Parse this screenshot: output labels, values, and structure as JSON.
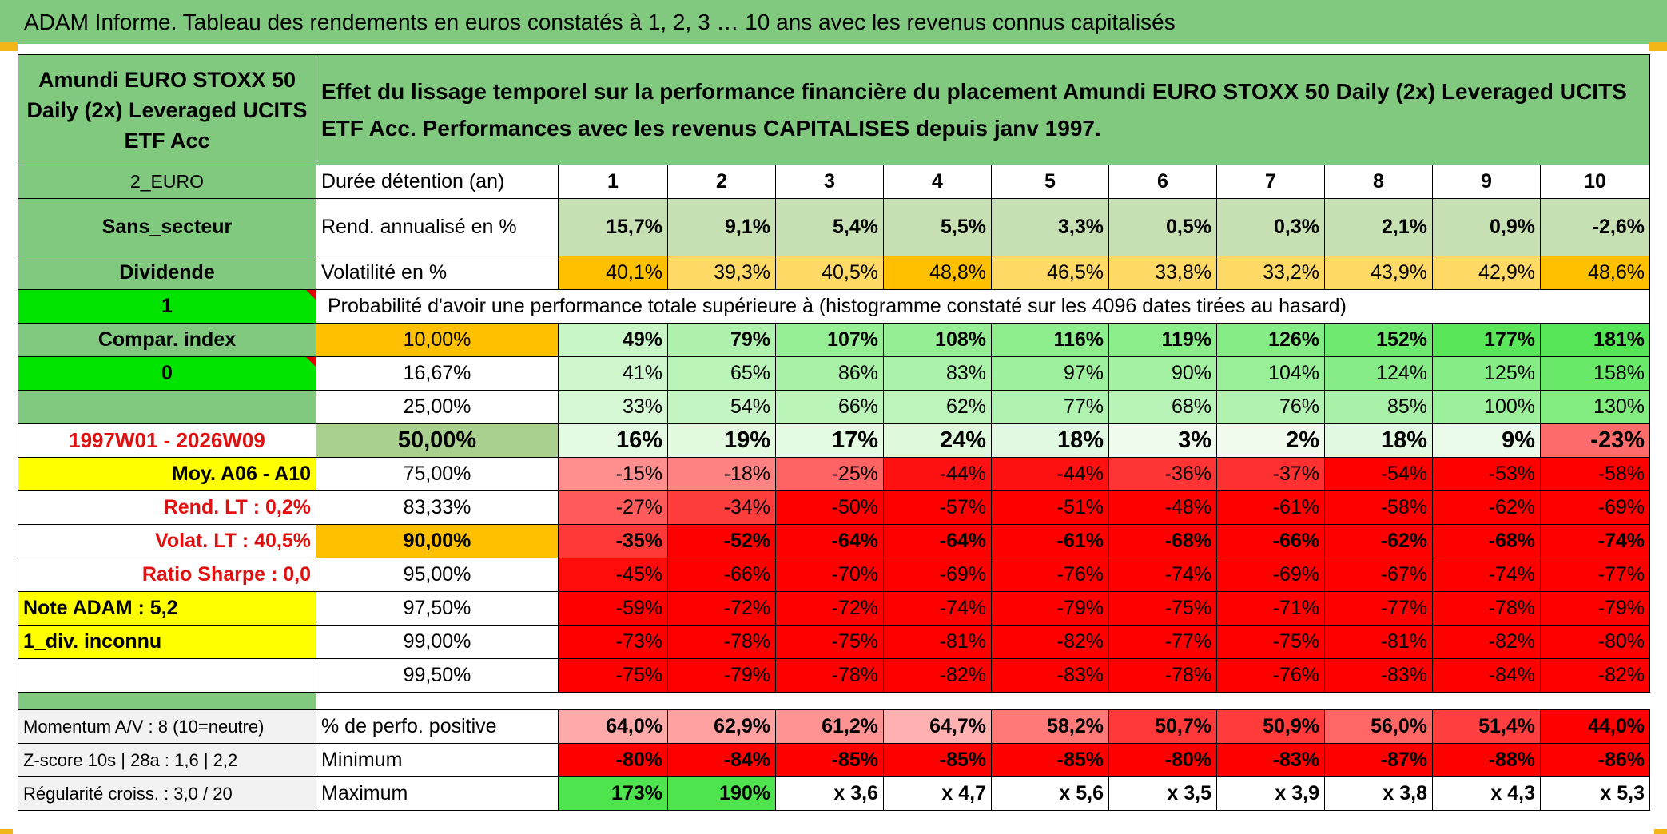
{
  "title": "ADAM Informe. Tableau des rendements en euros constatés à 1, 2, 3 … 10 ans avec les revenus connus capitalisés",
  "colors": {
    "title_green": "#80c97f",
    "bright_green": "#00e400",
    "yellow": "#ffff00",
    "orange": "#ffc000",
    "red": "#ff0000",
    "gray": "#f2f2f2"
  },
  "fund_name": "Amundi EURO STOXX 50 Daily (2x) Leveraged UCITS ETF Acc",
  "description": "Effet du lissage temporel sur la performance financière du placement Amundi EURO STOXX 50 Daily (2x) Leveraged UCITS ETF Acc. Performances avec les revenus CAPITALISES depuis janv 1997.",
  "left": {
    "currency": "2_EURO",
    "sector": "Sans_secteur",
    "dividend": "Dividende",
    "flag_value": "1",
    "compar_index": "Compar. index",
    "index_value": "0",
    "period": "1997W01 - 2026W09",
    "moy": "Moy. A06 - A10",
    "rend_lt": "Rend. LT :    0,2%",
    "volat_lt": "Volat. LT :   40,5%",
    "sharpe": "Ratio Sharpe :    0,0",
    "note": "Note ADAM : 5,2",
    "div": "1_div. inconnu",
    "momentum": "Momentum A/V : 8 (10=neutre)",
    "zscore": "Z-score 10s | 28a : 1,6 | 2,2",
    "regularite": "Régularité croiss. : 3,0 / 20"
  },
  "labels": {
    "duree": "Durée détention (an)",
    "rend": "Rend. annualisé en %",
    "vol": "Volatilité en %",
    "proba": "Probabilité d'avoir une performance totale supérieure à (histogramme constaté sur les 4096 dates tirées au hasard)",
    "positive": "% de perfo. positive",
    "minimum": "Minimum",
    "maximum": "Maximum"
  },
  "years": [
    "1",
    "2",
    "3",
    "4",
    "5",
    "6",
    "7",
    "8",
    "9",
    "10"
  ],
  "rend": [
    "15,7%",
    "9,1%",
    "5,4%",
    "5,5%",
    "3,3%",
    "0,5%",
    "0,3%",
    "2,1%",
    "0,9%",
    "-2,6%"
  ],
  "vol": [
    "40,1%",
    "39,3%",
    "40,5%",
    "48,8%",
    "46,5%",
    "33,8%",
    "33,2%",
    "43,9%",
    "42,9%",
    "48,6%"
  ],
  "vol_highlight": [
    true,
    false,
    false,
    true,
    false,
    false,
    false,
    false,
    false,
    true
  ],
  "quantiles": [
    {
      "label": "10,00%",
      "values": [
        "49%",
        "79%",
        "107%",
        "108%",
        "116%",
        "119%",
        "126%",
        "152%",
        "177%",
        "181%"
      ]
    },
    {
      "label": "16,67%",
      "values": [
        "41%",
        "65%",
        "86%",
        "83%",
        "97%",
        "90%",
        "104%",
        "124%",
        "125%",
        "158%"
      ]
    },
    {
      "label": "25,00%",
      "values": [
        "33%",
        "54%",
        "66%",
        "62%",
        "77%",
        "68%",
        "76%",
        "85%",
        "100%",
        "130%"
      ]
    },
    {
      "label": "50,00%",
      "values": [
        "16%",
        "19%",
        "17%",
        "24%",
        "18%",
        "3%",
        "2%",
        "18%",
        "9%",
        "-23%"
      ]
    },
    {
      "label": "75,00%",
      "values": [
        "-15%",
        "-18%",
        "-25%",
        "-44%",
        "-44%",
        "-36%",
        "-37%",
        "-54%",
        "-53%",
        "-58%"
      ]
    },
    {
      "label": "83,33%",
      "values": [
        "-27%",
        "-34%",
        "-50%",
        "-57%",
        "-51%",
        "-48%",
        "-61%",
        "-58%",
        "-62%",
        "-69%"
      ]
    },
    {
      "label": "90,00%",
      "values": [
        "-35%",
        "-52%",
        "-64%",
        "-64%",
        "-61%",
        "-68%",
        "-66%",
        "-62%",
        "-68%",
        "-74%"
      ]
    },
    {
      "label": "95,00%",
      "values": [
        "-45%",
        "-66%",
        "-70%",
        "-69%",
        "-76%",
        "-74%",
        "-69%",
        "-67%",
        "-74%",
        "-77%"
      ]
    },
    {
      "label": "97,50%",
      "values": [
        "-59%",
        "-72%",
        "-72%",
        "-74%",
        "-79%",
        "-75%",
        "-71%",
        "-77%",
        "-78%",
        "-79%"
      ]
    },
    {
      "label": "99,00%",
      "values": [
        "-73%",
        "-78%",
        "-75%",
        "-81%",
        "-82%",
        "-77%",
        "-75%",
        "-81%",
        "-82%",
        "-80%"
      ]
    },
    {
      "label": "99,50%",
      "values": [
        "-75%",
        "-79%",
        "-78%",
        "-82%",
        "-83%",
        "-78%",
        "-76%",
        "-83%",
        "-84%",
        "-82%"
      ]
    }
  ],
  "positive": [
    "64,0%",
    "62,9%",
    "61,2%",
    "64,7%",
    "58,2%",
    "50,7%",
    "50,9%",
    "56,0%",
    "51,4%",
    "44,0%"
  ],
  "minimum": [
    "-80%",
    "-84%",
    "-85%",
    "-85%",
    "-85%",
    "-80%",
    "-83%",
    "-87%",
    "-88%",
    "-86%"
  ],
  "maximum": [
    "173%",
    "190%",
    "x 3,6",
    "x 4,7",
    "x 5,6",
    "x 3,5",
    "x 3,9",
    "x 3,8",
    "x 4,3",
    "x 5,3"
  ]
}
